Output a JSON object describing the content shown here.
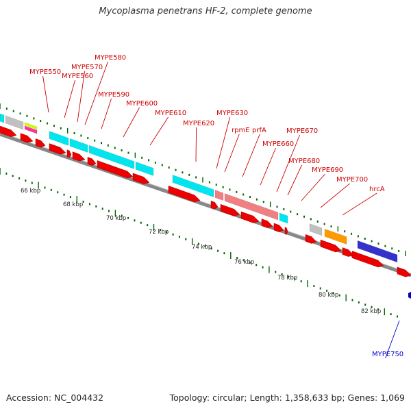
{
  "title": "Mycoplasma penetrans HF-2, complete genome",
  "footer": {
    "accession": "Accession: NC_004432",
    "stats": "Topology: circular; Length: 1,358,633 bp; Genes: 1,069"
  },
  "colors": {
    "label_red": "#cc0000",
    "label_blue": "#0000cc",
    "gene_red": "#ee0000",
    "feature_cyan": "#00e5ee",
    "feature_pink": "#f08080",
    "feature_gray": "#c0c0c0",
    "feature_orange": "#ff9900",
    "feature_blue": "#3333cc",
    "feature_yellow": "#ccff00",
    "feature_magenta": "#ff3399",
    "tick_green": "#006600",
    "backbone": "#888888"
  },
  "scale_labels": [
    "66 kbp",
    "68 kbp",
    "70 kbp",
    "72 kbp",
    "74 kbp",
    "76 kbp",
    "78 kbp",
    "80 kbp",
    "82 kbp"
  ],
  "gene_labels": [
    {
      "text": "MYPE550",
      "color": "red"
    },
    {
      "text": "MYPE560",
      "color": "red"
    },
    {
      "text": "MYPE570",
      "color": "red"
    },
    {
      "text": "MYPE580",
      "color": "red"
    },
    {
      "text": "MYPE590",
      "color": "red"
    },
    {
      "text": "MYPE600",
      "color": "red"
    },
    {
      "text": "MYPE610",
      "color": "red"
    },
    {
      "text": "MYPE620",
      "color": "red"
    },
    {
      "text": "MYPE630",
      "color": "red"
    },
    {
      "text": "rpmE",
      "color": "red"
    },
    {
      "text": "prfA",
      "color": "red"
    },
    {
      "text": "MYPE660",
      "color": "red"
    },
    {
      "text": "MYPE670",
      "color": "red"
    },
    {
      "text": "MYPE680",
      "color": "red"
    },
    {
      "text": "MYPE690",
      "color": "red"
    },
    {
      "text": "MYPE700",
      "color": "red"
    },
    {
      "text": "hrcA",
      "color": "red"
    },
    {
      "text": "MYPE750",
      "color": "blue"
    }
  ]
}
